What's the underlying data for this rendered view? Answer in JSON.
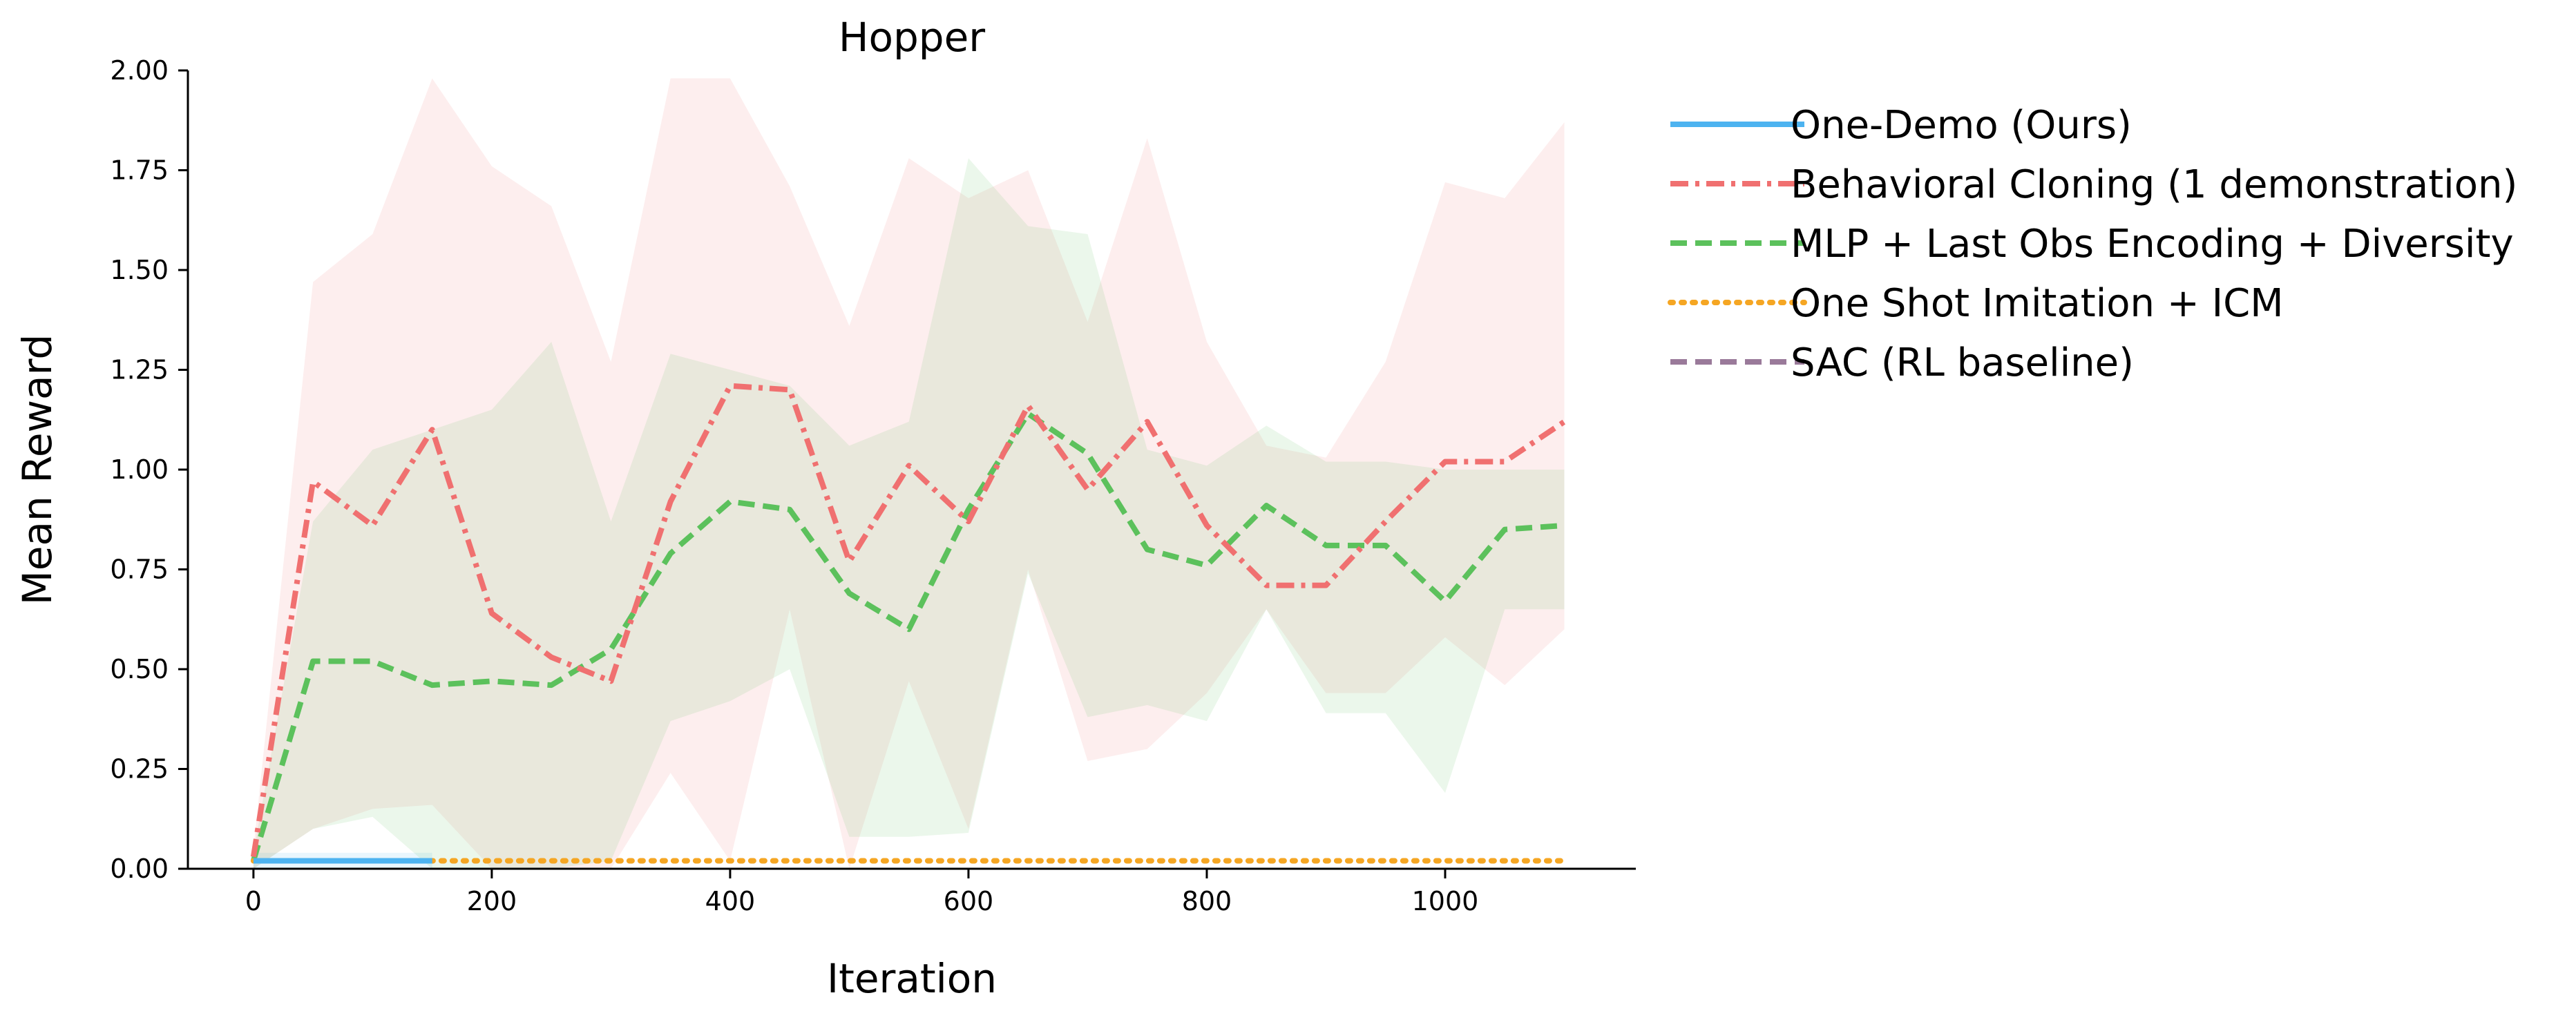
{
  "chart_data": {
    "type": "line",
    "title": "Hopper",
    "xlabel": "Iteration",
    "ylabel": "Mean Reward",
    "xlim": [
      -55,
      1160
    ],
    "ylim": [
      0,
      2.0
    ],
    "xticks": [
      0,
      200,
      400,
      600,
      800,
      1000
    ],
    "yticks": [
      0.0,
      0.25,
      0.5,
      0.75,
      1.0,
      1.25,
      1.5,
      1.75,
      2.0
    ],
    "xtick_labels": [
      "0",
      "200",
      "400",
      "600",
      "800",
      "1000"
    ],
    "ytick_labels": [
      "0.00",
      "0.25",
      "0.50",
      "0.75",
      "1.00",
      "1.25",
      "1.50",
      "1.75",
      "2.00"
    ],
    "grid": false,
    "legend_position": "outside-right",
    "series": [
      {
        "name": "One-Demo (Ours)",
        "color": "#4db3f0",
        "style": "solid",
        "x": [
          0,
          50,
          100,
          150
        ],
        "y": [
          0.02,
          0.02,
          0.02,
          0.02
        ],
        "band_low": [
          0.0,
          0.0,
          0.0,
          0.0
        ],
        "band_high": [
          0.04,
          0.04,
          0.04,
          0.04
        ]
      },
      {
        "name": "Behavioral Cloning (1 demonstration)",
        "color": "#f07070",
        "style": "dashdot",
        "x": [
          0,
          50,
          100,
          150,
          200,
          250,
          300,
          350,
          400,
          450,
          500,
          550,
          600,
          650,
          700,
          750,
          800,
          850,
          900,
          950,
          1000,
          1050,
          1100
        ],
        "y": [
          0.03,
          0.97,
          0.86,
          1.1,
          0.64,
          0.53,
          0.47,
          0.92,
          1.21,
          1.2,
          0.77,
          1.01,
          0.87,
          1.16,
          0.95,
          1.12,
          0.86,
          0.71,
          0.71,
          0.87,
          1.02,
          1.02,
          1.12
        ],
        "band_low": [
          0.0,
          0.1,
          0.15,
          0.16,
          0.0,
          0.0,
          0.0,
          0.24,
          0.02,
          0.65,
          0.0,
          0.47,
          0.1,
          0.75,
          0.27,
          0.3,
          0.44,
          0.65,
          0.44,
          0.44,
          0.58,
          0.46,
          0.6
        ],
        "band_high": [
          0.05,
          1.47,
          1.59,
          1.98,
          1.76,
          1.66,
          1.27,
          1.98,
          1.98,
          1.71,
          1.36,
          1.78,
          1.68,
          1.75,
          1.37,
          1.83,
          1.32,
          1.06,
          1.03,
          1.27,
          1.72,
          1.68,
          1.87
        ]
      },
      {
        "name": "MLP + Last Obs Encoding + Diversity",
        "color": "#5cc15c",
        "style": "dashed",
        "x": [
          0,
          50,
          100,
          150,
          200,
          250,
          300,
          350,
          400,
          450,
          500,
          550,
          600,
          650,
          700,
          750,
          800,
          850,
          900,
          950,
          1000,
          1050,
          1100
        ],
        "y": [
          0.02,
          0.52,
          0.52,
          0.46,
          0.47,
          0.46,
          0.55,
          0.79,
          0.92,
          0.9,
          0.69,
          0.6,
          0.9,
          1.14,
          1.04,
          0.8,
          0.76,
          0.91,
          0.81,
          0.81,
          0.67,
          0.85,
          0.86
        ],
        "band_low": [
          0.0,
          0.1,
          0.13,
          0.0,
          0.0,
          0.0,
          0.02,
          0.37,
          0.42,
          0.5,
          0.08,
          0.08,
          0.09,
          0.74,
          0.38,
          0.41,
          0.37,
          0.65,
          0.39,
          0.39,
          0.19,
          0.65,
          0.65
        ],
        "band_high": [
          0.04,
          0.87,
          1.05,
          1.1,
          1.15,
          1.32,
          0.87,
          1.29,
          1.25,
          1.21,
          1.06,
          1.12,
          1.78,
          1.61,
          1.59,
          1.05,
          1.01,
          1.11,
          1.02,
          1.02,
          1.0,
          1.0,
          1.0
        ]
      },
      {
        "name": "One Shot Imitation + ICM",
        "color": "#f5a623",
        "style": "dotted",
        "x": [
          0,
          50,
          100,
          150,
          200,
          250,
          300,
          350,
          400,
          450,
          500,
          550,
          600,
          650,
          700,
          750,
          800,
          850,
          900,
          950,
          1000,
          1050,
          1100
        ],
        "y": [
          0.02,
          0.02,
          0.02,
          0.02,
          0.02,
          0.02,
          0.02,
          0.02,
          0.02,
          0.02,
          0.02,
          0.02,
          0.02,
          0.02,
          0.02,
          0.02,
          0.02,
          0.02,
          0.02,
          0.02,
          0.02,
          0.02,
          0.02
        ]
      },
      {
        "name": "SAC (RL baseline)",
        "color": "#9a7a9a",
        "style": "dashed",
        "x": [],
        "y": []
      }
    ]
  }
}
